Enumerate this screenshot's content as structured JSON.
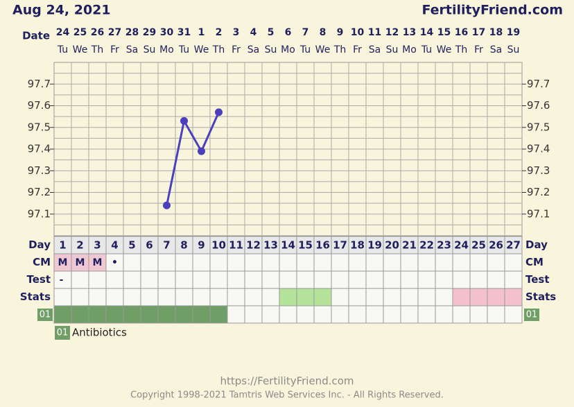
{
  "chart_data": {
    "type": "line",
    "header_date": "Aug 24, 2021",
    "site": "FertilityFriend.com",
    "row_labels": {
      "date": "Date",
      "day": "Day",
      "cm": "CM",
      "test": "Test",
      "stats": "Stats"
    },
    "dates": [
      "24",
      "25",
      "26",
      "27",
      "28",
      "29",
      "30",
      "31",
      "1",
      "2",
      "3",
      "4",
      "5",
      "6",
      "7",
      "8",
      "9",
      "10",
      "11",
      "12",
      "13",
      "14",
      "15",
      "16",
      "17",
      "18",
      "19"
    ],
    "weekdays": [
      "Tu",
      "We",
      "Th",
      "Fr",
      "Sa",
      "Su",
      "Mo",
      "Tu",
      "We",
      "Th",
      "Fr",
      "Sa",
      "Su",
      "Mo",
      "Tu",
      "We",
      "Th",
      "Fr",
      "Sa",
      "Su",
      "Mo",
      "Tu",
      "We",
      "Th",
      "Fr",
      "Sa",
      "Su"
    ],
    "categories": [
      "1",
      "2",
      "3",
      "4",
      "5",
      "6",
      "7",
      "8",
      "9",
      "10",
      "11",
      "12",
      "13",
      "14",
      "15",
      "16",
      "17",
      "18",
      "19",
      "20",
      "21",
      "22",
      "23",
      "24",
      "25",
      "26",
      "27"
    ],
    "series": [
      {
        "name": "Temperature",
        "color": "#4b3fbd",
        "values": [
          null,
          null,
          null,
          null,
          null,
          null,
          97.14,
          97.53,
          97.39,
          97.57,
          null,
          null,
          null,
          null,
          null,
          null,
          null,
          null,
          null,
          null,
          null,
          null,
          null,
          null,
          null,
          null,
          null
        ]
      }
    ],
    "ylim": [
      97.0,
      97.8
    ],
    "yticks": [
      97.1,
      97.2,
      97.3,
      97.4,
      97.5,
      97.6,
      97.7
    ],
    "grid": true,
    "cm": [
      "M",
      "M",
      "M",
      "•",
      null,
      null,
      null,
      null,
      null,
      null,
      null,
      null,
      null,
      null,
      null,
      null,
      null,
      null,
      null,
      null,
      null,
      null,
      null,
      null,
      null,
      null,
      null
    ],
    "cm_color": "#f0c8d4",
    "test": [
      "-",
      null,
      null,
      null,
      null,
      null,
      null,
      null,
      null,
      null,
      null,
      null,
      null,
      null,
      null,
      null,
      null,
      null,
      null,
      null,
      null,
      null,
      null,
      null,
      null,
      null,
      null
    ],
    "stats_colors": [
      null,
      null,
      null,
      null,
      null,
      null,
      null,
      null,
      null,
      null,
      null,
      null,
      null,
      "#b5e39c",
      "#b5e39c",
      "#b5e39c",
      null,
      null,
      null,
      null,
      null,
      null,
      null,
      "#f2c1cd",
      "#f2c1cd",
      "#f2c1cd",
      "#f2c1cd"
    ],
    "medication": {
      "code": "01",
      "name": "Antibiotics",
      "color": "#6f9e66",
      "active": [
        true,
        true,
        true,
        true,
        true,
        true,
        true,
        true,
        true,
        true,
        false,
        false,
        false,
        false,
        false,
        false,
        false,
        false,
        false,
        false,
        false,
        false,
        false,
        false,
        false,
        false,
        false
      ]
    },
    "footer_url": "https://FertilityFriend.com",
    "copyright": "Copyright 1998-2021 Tamtris Web Services Inc. - All Rights Reserved."
  }
}
